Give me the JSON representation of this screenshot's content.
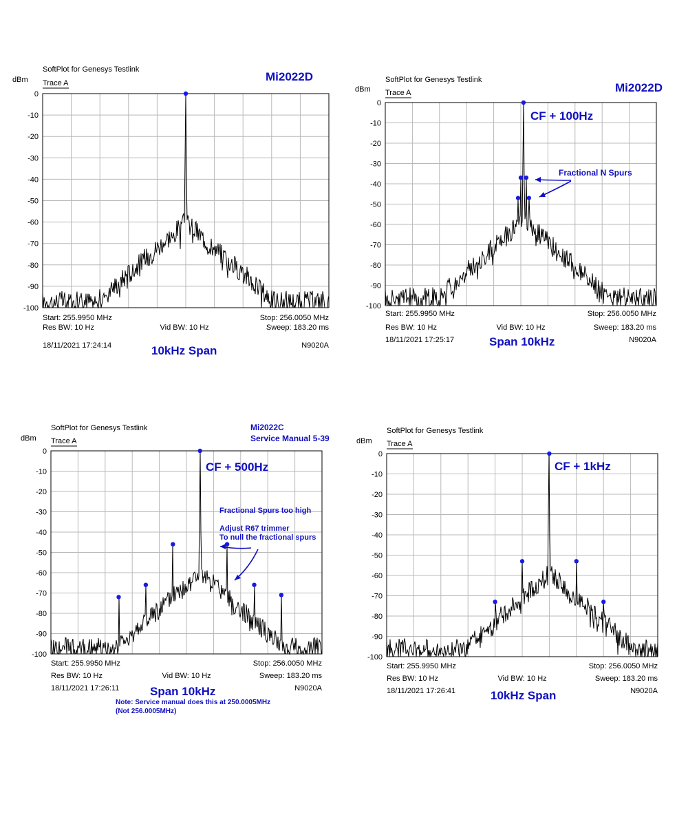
{
  "chart_data": [
    {
      "type": "line",
      "app_title": "SoftPlot for Genesys Testlink",
      "trace_label": "Trace A",
      "ylabel": "dBm",
      "ylim": [
        -100,
        0
      ],
      "yticks": [
        0,
        -10,
        -20,
        -30,
        -40,
        -50,
        -60,
        -70,
        -80,
        -90,
        -100
      ],
      "xlim": [
        255.995,
        256.005
      ],
      "grid": true,
      "start": "Start: 255.9950 MHz",
      "stop": "Stop: 256.0050 MHz",
      "res_bw": "Res BW: 10 Hz",
      "vid_bw": "Vid BW: 10 Hz",
      "sweep": "Sweep: 183.20 ms",
      "timestamp": "18/11/2021 17:24:14",
      "instrument": "N9020A",
      "model_label": "Mi2022D",
      "model_label2": "",
      "span_label": "10kHz Span",
      "cf_label": "",
      "carrier_offset_hz": 0,
      "spurs": [],
      "markers": [
        {
          "x": 256.0,
          "y": 0
        }
      ],
      "noise_floor": -97,
      "skirt_peak": -60
    },
    {
      "type": "line",
      "app_title": "SoftPlot for Genesys Testlink",
      "trace_label": "Trace A",
      "ylabel": "dBm",
      "ylim": [
        -100,
        0
      ],
      "yticks": [
        0,
        -10,
        -20,
        -30,
        -40,
        -50,
        -60,
        -70,
        -80,
        -90,
        -100
      ],
      "xlim": [
        255.995,
        256.005
      ],
      "grid": true,
      "start": "Start: 255.9950 MHz",
      "stop": "Stop: 256.0050 MHz",
      "res_bw": "Res BW: 10 Hz",
      "vid_bw": "Vid BW: 10 Hz",
      "sweep": "Sweep: 183.20 ms",
      "timestamp": "18/11/2021 17:25:17",
      "instrument": "N9020A",
      "model_label": "Mi2022D",
      "model_label2": "",
      "span_label": "Span 10kHz",
      "cf_label": "CF + 100Hz",
      "annotations": [
        "Fractional N Spurs"
      ],
      "carrier_offset_hz": 100,
      "spurs": [
        {
          "x": 255.9999,
          "y": -47
        },
        {
          "x": 256.0,
          "y": -37
        },
        {
          "x": 256.0002,
          "y": -37
        },
        {
          "x": 256.0003,
          "y": -47
        }
      ],
      "markers": [
        {
          "x": 256.0001,
          "y": 0
        },
        {
          "x": 255.9999,
          "y": -47
        },
        {
          "x": 256.0,
          "y": -37
        },
        {
          "x": 256.0002,
          "y": -37
        },
        {
          "x": 256.0003,
          "y": -47
        }
      ],
      "noise_floor": -96,
      "skirt_peak": -58
    },
    {
      "type": "line",
      "app_title": "SoftPlot for Genesys Testlink",
      "trace_label": "Trace A",
      "ylabel": "dBm",
      "ylim": [
        -100,
        0
      ],
      "yticks": [
        0,
        -10,
        -20,
        -30,
        -40,
        -50,
        -60,
        -70,
        -80,
        -90,
        -100
      ],
      "xlim": [
        255.995,
        256.005
      ],
      "grid": true,
      "start": "Start: 255.9950 MHz",
      "stop": "Stop: 256.0050 MHz",
      "res_bw": "Res BW: 10 Hz",
      "vid_bw": "Vid BW: 10 Hz",
      "sweep": "Sweep: 183.20 ms",
      "timestamp": "18/11/2021 17:26:11",
      "instrument": "N9020A",
      "model_label": "Mi2022C",
      "model_label2": "Service Manual 5-39",
      "span_label": "Span 10kHz",
      "cf_label": "CF + 500Hz",
      "annotations": [
        "Fractional Spurs too high",
        "Adjust R67 trimmer",
        "To null the fractional spurs"
      ],
      "note": [
        "Note: Service manual does this at 250.0005MHz",
        "(Not 256.0005MHz)"
      ],
      "carrier_offset_hz": 500,
      "spurs": [
        {
          "x": 255.9975,
          "y": -72
        },
        {
          "x": 255.9985,
          "y": -66
        },
        {
          "x": 255.9995,
          "y": -46
        },
        {
          "x": 256.0015,
          "y": -46
        },
        {
          "x": 256.0025,
          "y": -66
        },
        {
          "x": 256.0035,
          "y": -71
        }
      ],
      "markers": [
        {
          "x": 256.0005,
          "y": 0
        },
        {
          "x": 255.9975,
          "y": -72
        },
        {
          "x": 255.9985,
          "y": -66
        },
        {
          "x": 255.9995,
          "y": -46
        },
        {
          "x": 256.0015,
          "y": -46
        },
        {
          "x": 256.0025,
          "y": -66
        },
        {
          "x": 256.0035,
          "y": -71
        }
      ],
      "noise_floor": -97,
      "skirt_peak": -60
    },
    {
      "type": "line",
      "app_title": "SoftPlot for Genesys Testlink",
      "trace_label": "Trace A",
      "ylabel": "dBm",
      "ylim": [
        -100,
        0
      ],
      "yticks": [
        0,
        -10,
        -20,
        -30,
        -40,
        -50,
        -60,
        -70,
        -80,
        -90,
        -100
      ],
      "xlim": [
        255.995,
        256.005
      ],
      "grid": true,
      "start": "Start: 255.9950 MHz",
      "stop": "Stop: 256.0050 MHz",
      "res_bw": "Res BW: 10 Hz",
      "vid_bw": "Vid BW: 10 Hz",
      "sweep": "Sweep: 183.20 ms",
      "timestamp": "18/11/2021 17:26:41",
      "instrument": "N9020A",
      "model_label": "",
      "model_label2": "",
      "span_label": "10kHz Span",
      "cf_label": "CF + 1kHz",
      "carrier_offset_hz": 1000,
      "spurs": [
        {
          "x": 255.999,
          "y": -73
        },
        {
          "x": 256.0,
          "y": -53
        },
        {
          "x": 256.002,
          "y": -53
        },
        {
          "x": 256.003,
          "y": -73
        }
      ],
      "markers": [
        {
          "x": 256.001,
          "y": 0
        },
        {
          "x": 255.999,
          "y": -73
        },
        {
          "x": 256.0,
          "y": -53
        },
        {
          "x": 256.002,
          "y": -53
        },
        {
          "x": 256.003,
          "y": -73
        }
      ],
      "noise_floor": -96,
      "skirt_peak": -59
    }
  ]
}
